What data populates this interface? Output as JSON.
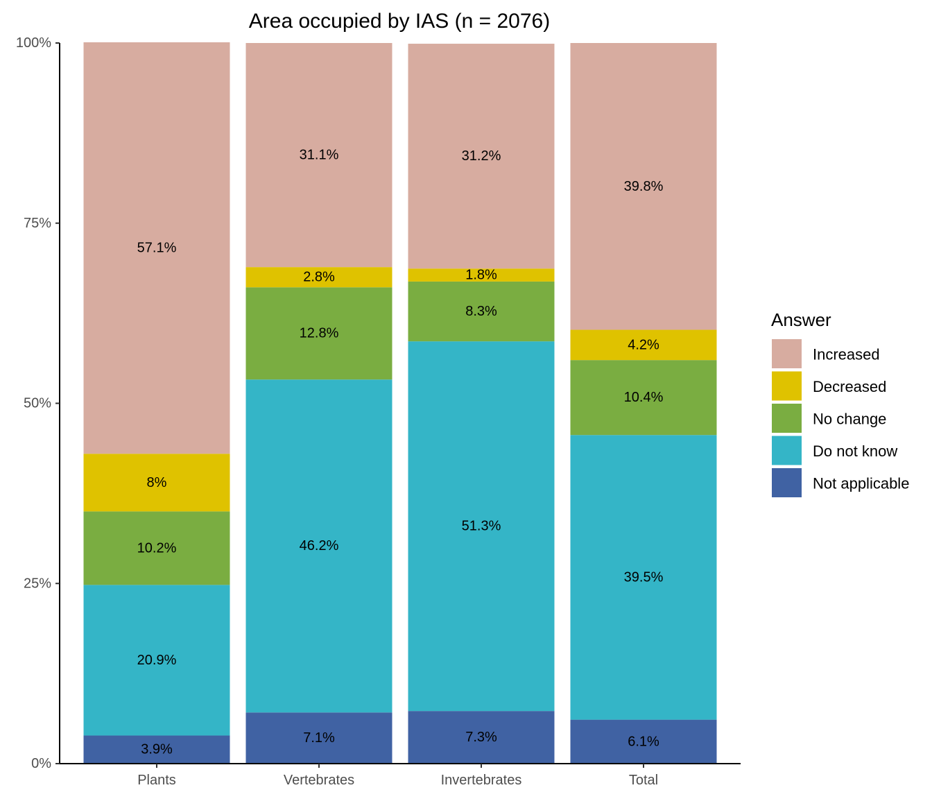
{
  "chart_data": {
    "type": "bar",
    "stacked": true,
    "title": "Area occupied by IAS (n = 2076)",
    "xlabel": "",
    "ylabel": "",
    "ylim": [
      0,
      100
    ],
    "yticks": [
      0,
      25,
      50,
      75,
      100
    ],
    "ytick_labels": [
      "0%",
      "25%",
      "50%",
      "75%",
      "100%"
    ],
    "categories": [
      "Plants",
      "Vertebrates",
      "Invertebrates",
      "Total"
    ],
    "series": [
      {
        "name": "Not applicable",
        "color": "#4062a3",
        "values": [
          3.9,
          7.1,
          7.3,
          6.1
        ],
        "labels": [
          "3.9%",
          "7.1%",
          "7.3%",
          "6.1%"
        ]
      },
      {
        "name": "Do not know",
        "color": "#34b5c7",
        "values": [
          20.9,
          46.2,
          51.3,
          39.5
        ],
        "labels": [
          "20.9%",
          "46.2%",
          "51.3%",
          "39.5%"
        ]
      },
      {
        "name": "No change",
        "color": "#7aad41",
        "values": [
          10.2,
          12.8,
          8.3,
          10.4
        ],
        "labels": [
          "10.2%",
          "12.8%",
          "8.3%",
          "10.4%"
        ]
      },
      {
        "name": "Decreased",
        "color": "#dfc200",
        "values": [
          8,
          2.8,
          1.8,
          4.2
        ],
        "labels": [
          "8%",
          "2.8%",
          "1.8%",
          "4.2%"
        ]
      },
      {
        "name": "Increased",
        "color": "#d7aca0",
        "values": [
          57.1,
          31.1,
          31.2,
          39.8
        ],
        "labels": [
          "57.1%",
          "31.1%",
          "31.2%",
          "39.8%"
        ]
      }
    ],
    "legend": {
      "title": "Answer",
      "position": "right",
      "order": [
        "Increased",
        "Decreased",
        "No change",
        "Do not know",
        "Not applicable"
      ]
    },
    "grid": false
  }
}
